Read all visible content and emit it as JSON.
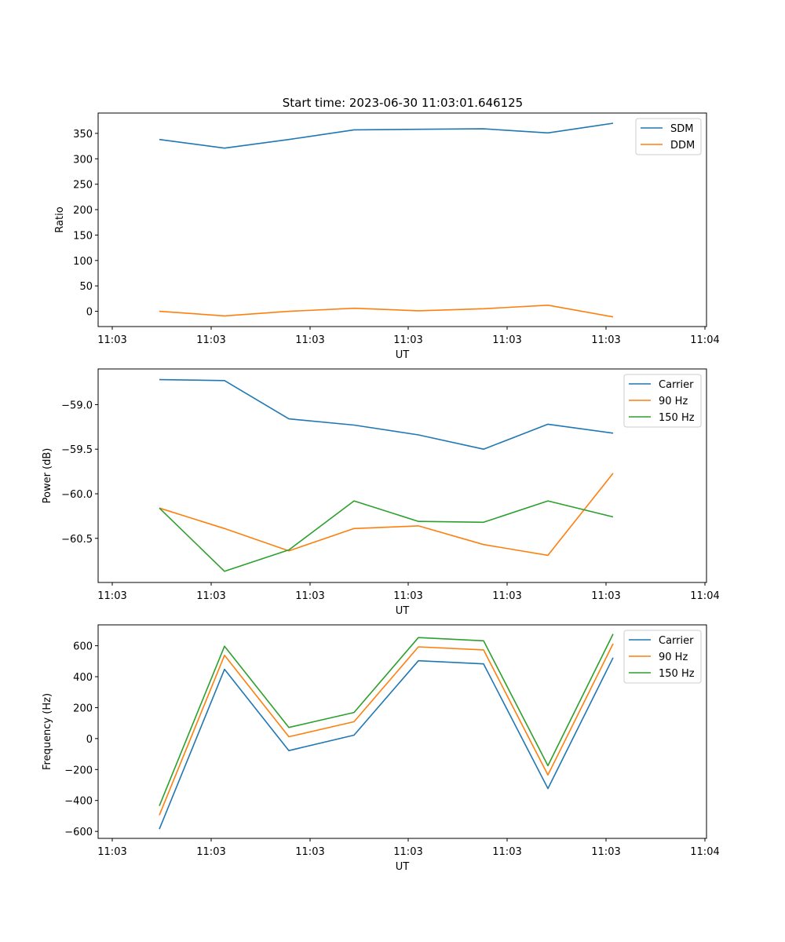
{
  "figure": {
    "title": "Start time: 2023-06-30 11:03:01.646125"
  },
  "chart_data": [
    {
      "type": "line",
      "xlabel": "UT",
      "ylabel": "Ratio",
      "x_ticks": [
        "11:03",
        "11:03",
        "11:03",
        "11:03",
        "11:03",
        "11:03",
        "11:04"
      ],
      "y_ticks": [
        "0",
        "50",
        "100",
        "150",
        "200",
        "250",
        "300",
        "350"
      ],
      "ylim": [
        -30,
        390
      ],
      "legend": "top-right",
      "series": [
        {
          "name": "SDM",
          "color": "#1f77b4",
          "values": [
            338,
            321,
            338,
            357,
            358,
            359,
            351,
            370
          ]
        },
        {
          "name": "DDM",
          "color": "#ff7f0e",
          "values": [
            0,
            -9,
            0,
            6,
            1,
            5,
            12,
            -11
          ]
        }
      ]
    },
    {
      "type": "line",
      "xlabel": "UT",
      "ylabel": "Power (dB)",
      "x_ticks": [
        "11:03",
        "11:03",
        "11:03",
        "11:03",
        "11:03",
        "11:03",
        "11:04"
      ],
      "y_ticks": [
        "−59.0",
        "−59.5",
        "−60.0",
        "−60.5"
      ],
      "ylim": [
        -60.995,
        -58.6
      ],
      "legend": "top-right",
      "series": [
        {
          "name": "Carrier",
          "color": "#1f77b4",
          "values": [
            -58.72,
            -58.73,
            -59.16,
            -59.23,
            -59.34,
            -59.5,
            -59.22,
            -59.32
          ]
        },
        {
          "name": "90 Hz",
          "color": "#ff7f0e",
          "values": [
            -60.16,
            -60.39,
            -60.64,
            -60.39,
            -60.36,
            -60.57,
            -60.69,
            -59.77
          ]
        },
        {
          "name": "150 Hz",
          "color": "#2ca02c",
          "values": [
            -60.16,
            -60.87,
            -60.63,
            -60.08,
            -60.31,
            -60.32,
            -60.08,
            -60.26
          ]
        }
      ]
    },
    {
      "type": "line",
      "xlabel": "UT",
      "ylabel": "Frequency (Hz)",
      "x_ticks": [
        "11:03",
        "11:03",
        "11:03",
        "11:03",
        "11:03",
        "11:03",
        "11:04"
      ],
      "y_ticks": [
        "−600",
        "−400",
        "−200",
        "0",
        "200",
        "400",
        "600"
      ],
      "ylim": [
        -645,
        735
      ],
      "legend": "top-right",
      "series": [
        {
          "name": "Carrier",
          "color": "#1f77b4",
          "values": [
            -585,
            448,
            -78,
            22,
            503,
            483,
            -323,
            523
          ]
        },
        {
          "name": "90 Hz",
          "color": "#ff7f0e",
          "values": [
            -495,
            538,
            12,
            109,
            593,
            573,
            -235,
            613
          ]
        },
        {
          "name": "150 Hz",
          "color": "#2ca02c",
          "values": [
            -435,
            597,
            72,
            169,
            653,
            632,
            -175,
            676
          ]
        }
      ]
    }
  ]
}
